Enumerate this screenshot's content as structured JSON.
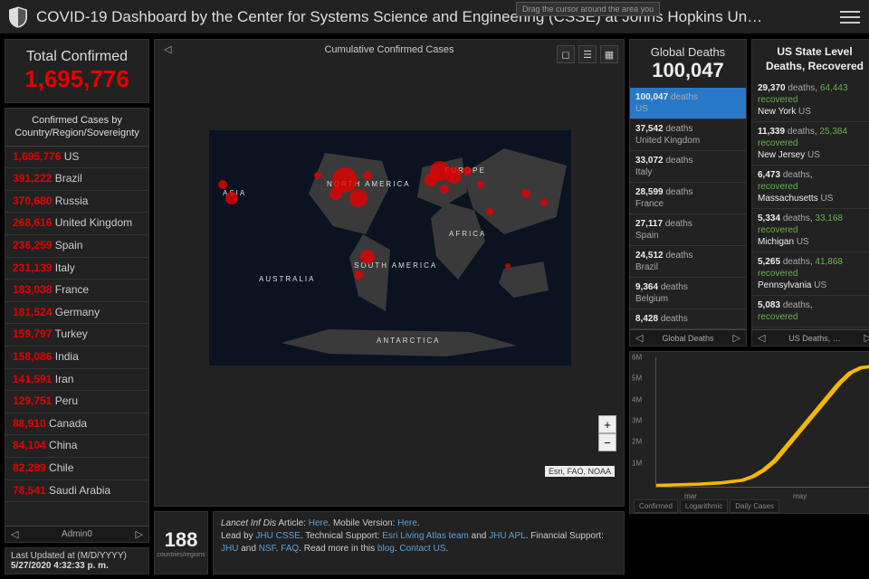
{
  "header": {
    "title": "COVID-19 Dashboard by the Center for Systems Science and Engineering (CSSE) at Johns Hopkins Un…",
    "tooltip": "Drag the cursor around the area you"
  },
  "total": {
    "label": "Total Confirmed",
    "value": "1,695,776"
  },
  "cases_header": "Confirmed Cases by Country/Region/Sovereignty",
  "cases": [
    {
      "n": "1,695,776",
      "c": "US"
    },
    {
      "n": "391,222",
      "c": "Brazil"
    },
    {
      "n": "370,680",
      "c": "Russia"
    },
    {
      "n": "268,616",
      "c": "United Kingdom"
    },
    {
      "n": "236,259",
      "c": "Spain"
    },
    {
      "n": "231,139",
      "c": "Italy"
    },
    {
      "n": "183,038",
      "c": "France"
    },
    {
      "n": "181,524",
      "c": "Germany"
    },
    {
      "n": "159,797",
      "c": "Turkey"
    },
    {
      "n": "158,086",
      "c": "India"
    },
    {
      "n": "141,591",
      "c": "Iran"
    },
    {
      "n": "129,751",
      "c": "Peru"
    },
    {
      "n": "88,910",
      "c": "Canada"
    },
    {
      "n": "84,104",
      "c": "China"
    },
    {
      "n": "82,289",
      "c": "Chile"
    },
    {
      "n": "78,541",
      "c": "Saudi Arabia"
    }
  ],
  "pager_label": "Admin0",
  "updated": {
    "label": "Last Updated at (M/D/YYYY)",
    "value": "5/27/2020 4:32:33 p. m."
  },
  "map": {
    "footer": "Cumulative Confirmed Cases",
    "attrib": "Esri, FAO, NOAA",
    "labels": {
      "na": "NORTH AMERICA",
      "sa": "SOUTH AMERICA",
      "eu": "EUROPE",
      "af": "AFRICA",
      "as": "ASIA",
      "au": "AUSTRALIA",
      "an": "ANTARCTICA"
    }
  },
  "count_box": {
    "num": "188",
    "label": "countries/regions"
  },
  "credits": {
    "l1a": "Lancet Inf Dis",
    "l1b": " Article: ",
    "l1c": "Here",
    "l1d": ". Mobile Version: ",
    "l1e": "Here",
    "l1f": ".",
    "l2a": "Lead by ",
    "l2b": "JHU CSSE",
    "l2c": ". Technical Support: ",
    "l2d": "Esri Living Atlas team",
    "l2e": " and ",
    "l2f": "JHU APL",
    "l2g": ". Financial Support: ",
    "l2h": "JHU",
    "l2i": " and ",
    "l2j": "NSF",
    "l2k": ". ",
    "l2l": "FAQ",
    "l2m": ". Read more in this ",
    "l2n": "blog",
    "l2o": ". ",
    "l2p": "Contact US",
    "l2q": "."
  },
  "deaths": {
    "label": "Global Deaths",
    "value": "100,047",
    "rows": [
      {
        "n": "100,047",
        "t": "deaths",
        "c": "US",
        "sel": true
      },
      {
        "n": "37,542",
        "t": "deaths",
        "c": "United Kingdom"
      },
      {
        "n": "33,072",
        "t": "deaths",
        "c": "Italy"
      },
      {
        "n": "28,599",
        "t": "deaths",
        "c": "France"
      },
      {
        "n": "27,117",
        "t": "deaths",
        "c": "Spain"
      },
      {
        "n": "24,512",
        "t": "deaths",
        "c": "Brazil"
      },
      {
        "n": "9,364",
        "t": "deaths",
        "c": "Belgium"
      },
      {
        "n": "8,428",
        "t": "deaths",
        "c": ""
      }
    ],
    "pager": "Global Deaths"
  },
  "us_panel": {
    "title1": "US State Level",
    "title2": "Deaths, Recovered",
    "rows": [
      {
        "d": "29,370",
        "r": "64,443",
        "s": "New York",
        "c": "US"
      },
      {
        "d": "11,339",
        "r": "25,384",
        "s": "New Jersey",
        "c": "US"
      },
      {
        "d": "6,473",
        "r": "",
        "s": "Massachusetts",
        "c": "US"
      },
      {
        "d": "5,334",
        "r": "33,168",
        "s": "Michigan",
        "c": "US"
      },
      {
        "d": "5,265",
        "r": "41,868",
        "s": "Pennsylvania",
        "c": "US"
      },
      {
        "d": "5,083",
        "r": "",
        "s": "",
        "c": ""
      }
    ],
    "pager": "US Deaths, …"
  },
  "chart": {
    "type": "line",
    "color": "#f5b800",
    "background": "#222",
    "yticks": [
      "1M",
      "2M",
      "3M",
      "4M",
      "5M",
      "6M"
    ],
    "xticks": [
      "mar",
      "may"
    ],
    "ylim": [
      0,
      6000000
    ],
    "points": [
      [
        0,
        0.01
      ],
      [
        0.1,
        0.015
      ],
      [
        0.2,
        0.02
      ],
      [
        0.3,
        0.03
      ],
      [
        0.4,
        0.05
      ],
      [
        0.45,
        0.08
      ],
      [
        0.5,
        0.13
      ],
      [
        0.55,
        0.2
      ],
      [
        0.6,
        0.3
      ],
      [
        0.65,
        0.4
      ],
      [
        0.7,
        0.5
      ],
      [
        0.75,
        0.6
      ],
      [
        0.8,
        0.7
      ],
      [
        0.85,
        0.8
      ],
      [
        0.9,
        0.88
      ],
      [
        0.95,
        0.92
      ],
      [
        1,
        0.93
      ]
    ],
    "tabs": [
      "Confirmed",
      "Logarithmic",
      "Daily Cases"
    ]
  }
}
